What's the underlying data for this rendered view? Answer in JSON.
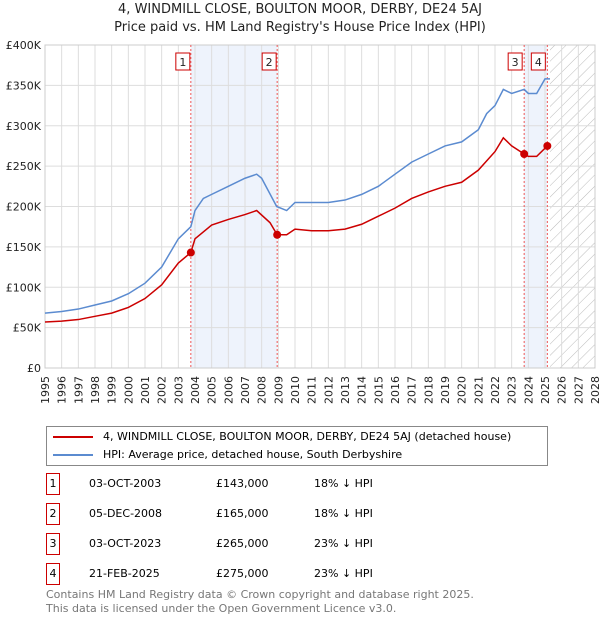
{
  "chart_data": {
    "type": "line",
    "title": "4, WINDMILL CLOSE, BOULTON MOOR, DERBY, DE24 5AJ",
    "subtitle": "Price paid vs. HM Land Registry's House Price Index (HPI)",
    "xlim": [
      1995,
      2028
    ],
    "ylim": [
      0,
      400000
    ],
    "y_ticks": [
      0,
      50000,
      100000,
      150000,
      200000,
      250000,
      300000,
      350000,
      400000
    ],
    "y_tick_labels": [
      "£0",
      "£50K",
      "£100K",
      "£150K",
      "£200K",
      "£250K",
      "£300K",
      "£350K",
      "£400K"
    ],
    "x_ticks": [
      1995,
      1996,
      1997,
      1998,
      1999,
      2000,
      2001,
      2002,
      2003,
      2004,
      2005,
      2006,
      2007,
      2008,
      2009,
      2010,
      2011,
      2012,
      2013,
      2014,
      2015,
      2016,
      2017,
      2018,
      2019,
      2020,
      2021,
      2022,
      2023,
      2024,
      2025,
      2026,
      2027,
      2028
    ],
    "grid": true,
    "forecast_hatch_from": 2025.3,
    "shaded_ranges": [
      [
        2003.75,
        2008.93
      ],
      [
        2023.75,
        2025.14
      ]
    ],
    "series": [
      {
        "name": "4, WINDMILL CLOSE, BOULTON MOOR, DERBY, DE24 5AJ (detached house)",
        "color": "#cc0000",
        "x": [
          1995,
          1996,
          1997,
          1998,
          1999,
          2000,
          2001,
          2002,
          2003,
          2003.75,
          2004,
          2005,
          2006,
          2007,
          2007.7,
          2008.5,
          2008.93,
          2009.5,
          2010,
          2011,
          2012,
          2013,
          2014,
          2015,
          2016,
          2017,
          2018,
          2019,
          2020,
          2021,
          2022,
          2022.5,
          2023,
          2023.75,
          2024,
          2024.5,
          2025.14,
          2025.3
        ],
        "y": [
          57000,
          58000,
          60000,
          64000,
          68000,
          75000,
          86000,
          103000,
          130000,
          143000,
          160000,
          177000,
          184000,
          190000,
          195000,
          180000,
          165000,
          165000,
          172000,
          170000,
          170000,
          172000,
          178000,
          188000,
          198000,
          210000,
          218000,
          225000,
          230000,
          245000,
          268000,
          285000,
          275000,
          265000,
          262000,
          262000,
          275000,
          278000
        ]
      },
      {
        "name": "HPI: Average price, detached house, South Derbyshire",
        "color": "#5b8bd0",
        "x": [
          1995,
          1996,
          1997,
          1998,
          1999,
          2000,
          2001,
          2002,
          2003,
          2003.75,
          2004,
          2004.5,
          2005,
          2006,
          2007,
          2007.7,
          2008,
          2008.9,
          2009.5,
          2010,
          2011,
          2012,
          2013,
          2014,
          2015,
          2016,
          2017,
          2018,
          2019,
          2020,
          2021,
          2021.5,
          2022,
          2022.5,
          2023,
          2023.75,
          2024,
          2024.5,
          2025,
          2025.3
        ],
        "y": [
          68000,
          70000,
          73000,
          78000,
          83000,
          92000,
          105000,
          125000,
          160000,
          175000,
          195000,
          210000,
          215000,
          225000,
          235000,
          240000,
          235000,
          200000,
          195000,
          205000,
          205000,
          205000,
          208000,
          215000,
          225000,
          240000,
          255000,
          265000,
          275000,
          280000,
          295000,
          315000,
          325000,
          345000,
          340000,
          345000,
          340000,
          340000,
          358000,
          358000
        ]
      }
    ],
    "sales": [
      {
        "label": "1",
        "date": "03-OCT-2003",
        "x": 2003.75,
        "price": 143000,
        "price_label": "£143,000",
        "hpi": "18% ↓ HPI"
      },
      {
        "label": "2",
        "date": "05-DEC-2008",
        "x": 2008.93,
        "price": 165000,
        "price_label": "£165,000",
        "hpi": "18% ↓ HPI"
      },
      {
        "label": "3",
        "date": "03-OCT-2023",
        "x": 2023.75,
        "price": 265000,
        "price_label": "£265,000",
        "hpi": "23% ↓ HPI"
      },
      {
        "label": "4",
        "date": "21-FEB-2025",
        "x": 2025.14,
        "price": 275000,
        "price_label": "£275,000",
        "hpi": "23% ↓ HPI"
      }
    ]
  },
  "footer": {
    "line1": "Contains HM Land Registry data © Crown copyright and database right 2025.",
    "line2": "This data is licensed under the Open Government Licence v3.0."
  }
}
